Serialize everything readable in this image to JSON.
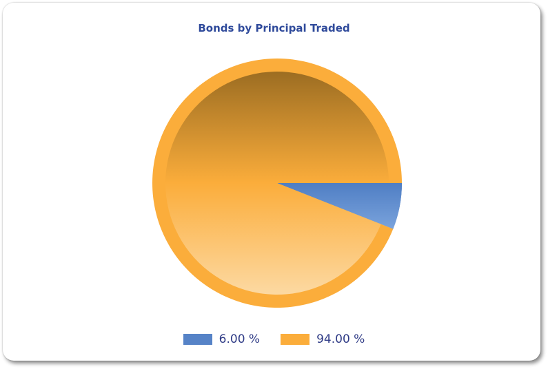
{
  "chart_data": {
    "type": "pie",
    "title": "Bonds by Principal Traded",
    "slices": [
      {
        "value": 6.0,
        "label": "6.00 %",
        "color": "#5683c7"
      },
      {
        "value": 94.0,
        "label": "94.00 %",
        "color": "#fbad3b"
      }
    ],
    "legend": "bottom"
  }
}
